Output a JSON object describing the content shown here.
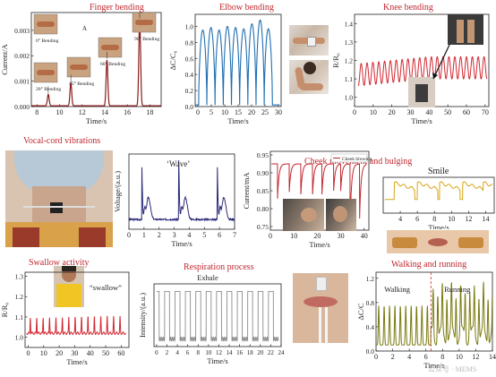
{
  "colors": {
    "dark_red": "#8b1a1a",
    "red": "#d22630",
    "blue": "#1f6fb2",
    "navy": "#2b2a7a",
    "crimson": "#c0282f",
    "gray": "#8c8c8c",
    "gold": "#d6a516",
    "olive": "#7a7a10",
    "title_red": "#c0282f"
  },
  "chart_data": [
    {
      "id": "finger",
      "type": "line",
      "title": "Finger bending",
      "xlabel": "Time/s",
      "ylabel": "Current/A",
      "xlim": [
        7.5,
        19
      ],
      "ylim": [
        0,
        0.0037
      ],
      "xticks": [
        "8",
        "10",
        "12",
        "14",
        "16",
        "18"
      ],
      "yticks": [
        "0.000",
        "0.001",
        "0.002",
        "0.003"
      ],
      "peaks": [
        {
          "t": 9.0,
          "v": 0.00045
        },
        {
          "t": 11.0,
          "v": 0.0009
        },
        {
          "t": 14.2,
          "v": 0.0018
        },
        {
          "t": 17.1,
          "v": 0.0034
        }
      ],
      "panel_letter": "A",
      "annotations": [
        "0° Bending",
        "20° Bending",
        "45° Bending",
        "60° Bending",
        "90° Bending"
      ]
    },
    {
      "id": "elbow",
      "type": "line",
      "title": "Elbow bending",
      "xlabel": "Time/s",
      "ylabel": "ΔC/C₀",
      "xlim": [
        -1,
        31
      ],
      "ylim": [
        0,
        1.15
      ],
      "xticks": [
        "0",
        "5",
        "10",
        "15",
        "20",
        "25",
        "30"
      ],
      "yticks": [
        "0.0",
        "0.2",
        "0.4",
        "0.6",
        "0.8",
        "1.0"
      ],
      "cycles": 9,
      "amplitudes": [
        0.97,
        0.99,
        0.97,
        1.0,
        0.99,
        0.98,
        1.02,
        1.05,
        0.98
      ]
    },
    {
      "id": "knee",
      "type": "line",
      "title": "Knee bending",
      "xlabel": "Time/s",
      "ylabel": "R/R₀",
      "xlim": [
        0,
        72
      ],
      "ylim": [
        0.95,
        1.45
      ],
      "xticks": [
        "0",
        "10",
        "20",
        "30",
        "40",
        "50",
        "60",
        "70"
      ],
      "yticks": [
        "1.0",
        "1.1",
        "1.2",
        "1.3",
        "1.4"
      ],
      "cycles": 22,
      "amplitude": 0.12,
      "baseline": 1.06
    },
    {
      "id": "vocal",
      "type": "line",
      "title": "Vocal-cord vibrations",
      "xlabel": "Time/s",
      "ylabel": "Voltage/(a.u.)",
      "xlim": [
        0,
        7
      ],
      "ylim": [
        0,
        1
      ],
      "xticks": [
        "0",
        "1",
        "2",
        "3",
        "4",
        "5",
        "6",
        "7"
      ],
      "annotation": "‘Wave’",
      "bursts": [
        0.85,
        3.3,
        5.85
      ]
    },
    {
      "id": "cheek",
      "type": "line",
      "title": "Cheek movement and bulging",
      "xlabel": "Time/s",
      "ylabel": "Current/mA",
      "xlim": [
        0,
        42
      ],
      "ylim": [
        0.74,
        0.96
      ],
      "xticks": [
        "0",
        "10",
        "20",
        "30",
        "40"
      ],
      "yticks": [
        "0.75",
        "0.80",
        "0.85",
        "0.90",
        "0.95"
      ],
      "legend": "Cheek blowing",
      "dips": [
        3,
        8,
        13,
        18,
        22,
        27,
        30,
        34,
        38
      ],
      "dip_depths": [
        0.82,
        0.84,
        0.84,
        0.84,
        0.84,
        0.85,
        0.85,
        0.76,
        0.76
      ]
    },
    {
      "id": "smile",
      "type": "line",
      "title": "Smile",
      "xlabel": "Time/s",
      "xlim": [
        2,
        15
      ],
      "xticks": [
        "4",
        "6",
        "8",
        "10",
        "12",
        "14"
      ],
      "steps": [
        3.3,
        6.0,
        8.6,
        11.3,
        13.7
      ]
    },
    {
      "id": "swallow",
      "type": "line",
      "title": "Swallow activity",
      "xlabel": "Time/s",
      "ylabel": "R/R₀",
      "xlim": [
        -2,
        65
      ],
      "ylim": [
        0.95,
        1.32
      ],
      "xticks": [
        "0",
        "10",
        "20",
        "30",
        "40",
        "50",
        "60"
      ],
      "yticks": [
        "1.0",
        "1.1",
        "1.2",
        "1.3"
      ],
      "annotation": "“swallow”",
      "cycles": 15,
      "amplitude": 0.08,
      "baseline": 1.02
    },
    {
      "id": "respiration",
      "type": "line",
      "title": "Respiration process",
      "subtitle": "Exhale",
      "xlabel": "Time/s",
      "ylabel": "Intensity/(a.u.)",
      "xlim": [
        -0.5,
        24
      ],
      "xticks": [
        "0",
        "2",
        "4",
        "6",
        "8",
        "10",
        "12",
        "14",
        "16",
        "18",
        "20",
        "22",
        "24"
      ],
      "cycles": 12
    },
    {
      "id": "walking",
      "type": "line",
      "title": "Walking and running",
      "xlabel": "Time/s",
      "ylabel": "ΔC/C",
      "xlim": [
        0,
        14
      ],
      "ylim": [
        0,
        1.3
      ],
      "xticks": [
        "0",
        "2",
        "4",
        "6",
        "8",
        "10",
        "12",
        "14"
      ],
      "yticks": [
        "0.0",
        "0.4",
        "0.8",
        "1.2"
      ],
      "labels": [
        "Walking",
        "Running"
      ],
      "divider": 6.6
    }
  ],
  "watermark": "公众号 · MEMS"
}
